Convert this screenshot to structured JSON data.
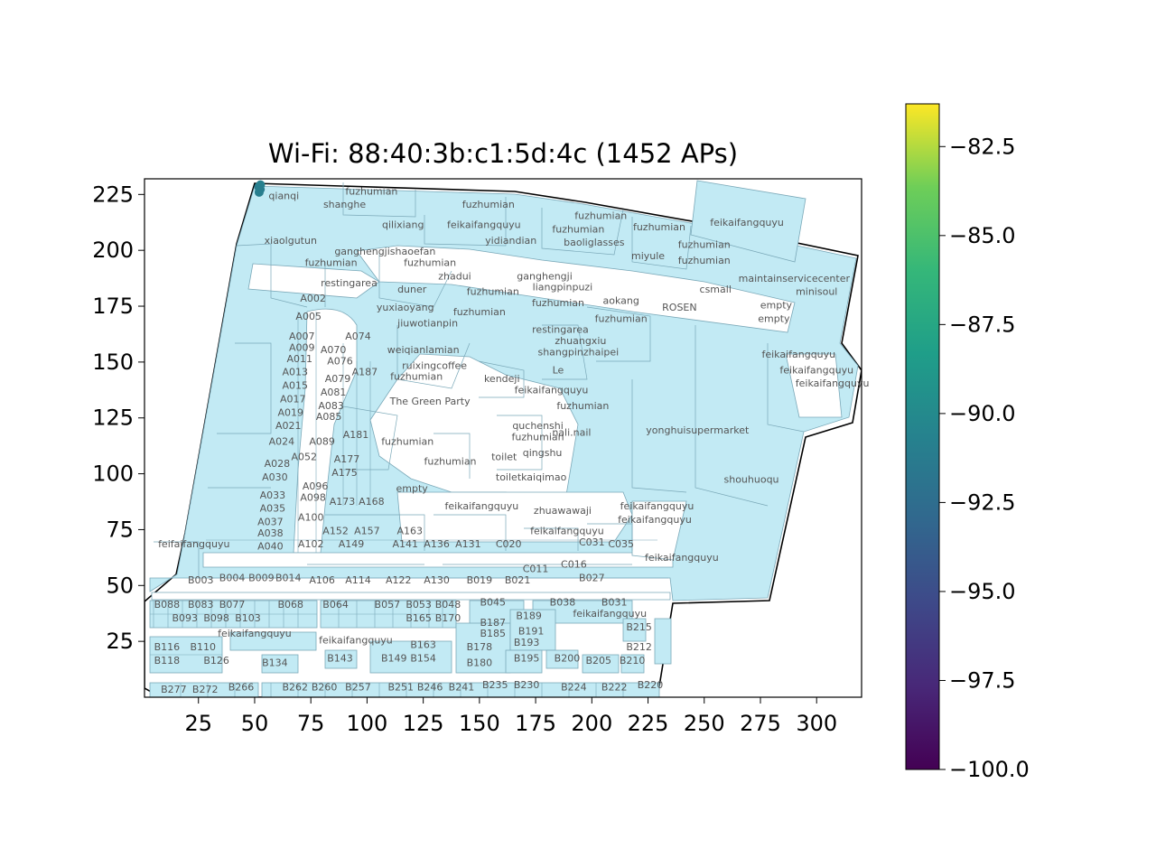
{
  "chart_data": {
    "type": "scatter",
    "title": "Wi-Fi: 88:40:3b:c1:5d:4c (1452 APs)",
    "xlabel": "",
    "ylabel": "",
    "xlim": [
      1,
      320
    ],
    "ylim": [
      0,
      232
    ],
    "xticks": [
      25,
      50,
      75,
      100,
      125,
      150,
      175,
      200,
      225,
      250,
      275,
      300
    ],
    "yticks": [
      25,
      50,
      75,
      100,
      125,
      150,
      175,
      200,
      225
    ],
    "grid": false,
    "series": [
      {
        "points": [
          {
            "x": 52.0,
            "y": 226.0,
            "rssi": -91.0
          },
          {
            "x": 52.5,
            "y": 227.3,
            "rssi": -91.5
          },
          {
            "x": 51.8,
            "y": 228.4,
            "rssi": -91.2
          },
          {
            "x": 52.6,
            "y": 229.3,
            "rssi": -90.8
          },
          {
            "x": 52.2,
            "y": 227.0,
            "rssi": -91.0
          }
        ]
      }
    ],
    "colorbar": {
      "min": -100.0,
      "max": -81.3,
      "ticks": [
        -82.5,
        -85.0,
        -87.5,
        -90.0,
        -92.5,
        -95.0,
        -97.5,
        -100.0
      ],
      "tick_labels": [
        "−82.5",
        "−85.0",
        "−87.5",
        "−90.0",
        "−92.5",
        "−95.0",
        "−97.5",
        "−100.0"
      ],
      "colormap": "viridis"
    },
    "colors": {
      "shop_fill": "#c2eaf4",
      "shop_edge": "#7aa8b8",
      "outline": "#000000"
    },
    "map_labels": [
      {
        "text": "qianqi",
        "x": 63,
        "y": 223
      },
      {
        "text": "fuzhumian",
        "x": 102,
        "y": 225
      },
      {
        "text": "shanghe",
        "x": 90,
        "y": 219
      },
      {
        "text": "fuzhumian",
        "x": 154,
        "y": 219
      },
      {
        "text": "fuzhumian",
        "x": 204,
        "y": 214
      },
      {
        "text": "qilixiang",
        "x": 116,
        "y": 210
      },
      {
        "text": "feikaifangquyu",
        "x": 152,
        "y": 210
      },
      {
        "text": "fuzhumian",
        "x": 194,
        "y": 208
      },
      {
        "text": "fuzhumian",
        "x": 230,
        "y": 209
      },
      {
        "text": "feikaifangquyu",
        "x": 269,
        "y": 211
      },
      {
        "text": "xiaolgutun",
        "x": 66,
        "y": 203
      },
      {
        "text": "yidiandian",
        "x": 164,
        "y": 203
      },
      {
        "text": "baoliglasses",
        "x": 201,
        "y": 202
      },
      {
        "text": "fuzhumian",
        "x": 250,
        "y": 201
      },
      {
        "text": "ganghengjishaoefan",
        "x": 108,
        "y": 198
      },
      {
        "text": "miyule",
        "x": 225,
        "y": 196
      },
      {
        "text": "fuzhumian",
        "x": 250,
        "y": 194
      },
      {
        "text": "fuzhumian",
        "x": 84,
        "y": 193
      },
      {
        "text": "fuzhumian",
        "x": 128,
        "y": 193
      },
      {
        "text": "zhadui",
        "x": 139,
        "y": 187
      },
      {
        "text": "ganghengji",
        "x": 179,
        "y": 187
      },
      {
        "text": "maintainservicecenter",
        "x": 290,
        "y": 186
      },
      {
        "text": "restingarea",
        "x": 92,
        "y": 184
      },
      {
        "text": "liangpinpuzi",
        "x": 187,
        "y": 182
      },
      {
        "text": "duner",
        "x": 120,
        "y": 181
      },
      {
        "text": "fuzhumian",
        "x": 156,
        "y": 180
      },
      {
        "text": "csmall",
        "x": 255,
        "y": 181
      },
      {
        "text": "minisoul",
        "x": 300,
        "y": 180
      },
      {
        "text": "A002",
        "x": 76,
        "y": 177
      },
      {
        "text": "aokang",
        "x": 213,
        "y": 176
      },
      {
        "text": "fuzhumian",
        "x": 185,
        "y": 175
      },
      {
        "text": "empty",
        "x": 282,
        "y": 174
      },
      {
        "text": "yuxiaoyang",
        "x": 117,
        "y": 173
      },
      {
        "text": "fuzhumian",
        "x": 150,
        "y": 171
      },
      {
        "text": "ROSEN",
        "x": 239,
        "y": 173
      },
      {
        "text": "A005",
        "x": 74,
        "y": 169
      },
      {
        "text": "fuzhumian",
        "x": 213,
        "y": 168
      },
      {
        "text": "empty",
        "x": 281,
        "y": 168
      },
      {
        "text": "jiuwotianpin",
        "x": 127,
        "y": 166
      },
      {
        "text": "restingarea",
        "x": 186,
        "y": 163
      },
      {
        "text": "A007",
        "x": 71,
        "y": 160
      },
      {
        "text": "A074",
        "x": 96,
        "y": 160
      },
      {
        "text": "zhuangxiu",
        "x": 195,
        "y": 158
      },
      {
        "text": "A009",
        "x": 71,
        "y": 155
      },
      {
        "text": "A070",
        "x": 85,
        "y": 154
      },
      {
        "text": "weiqianlamian",
        "x": 125,
        "y": 154
      },
      {
        "text": "shangpinzhaipei",
        "x": 194,
        "y": 153
      },
      {
        "text": "feikaifangquyu",
        "x": 292,
        "y": 152
      },
      {
        "text": "A011",
        "x": 70,
        "y": 150
      },
      {
        "text": "A076",
        "x": 88,
        "y": 149
      },
      {
        "text": "ruixingcoffee",
        "x": 130,
        "y": 147
      },
      {
        "text": "A013",
        "x": 68,
        "y": 144
      },
      {
        "text": "A187",
        "x": 99,
        "y": 144
      },
      {
        "text": "Le",
        "x": 185,
        "y": 145
      },
      {
        "text": "feikaifangquyu",
        "x": 300,
        "y": 145
      },
      {
        "text": "fuzhumian",
        "x": 122,
        "y": 142
      },
      {
        "text": "kendeji",
        "x": 160,
        "y": 141
      },
      {
        "text": "A079",
        "x": 87,
        "y": 141
      },
      {
        "text": "feikaifangquyu",
        "x": 307,
        "y": 139
      },
      {
        "text": "A015",
        "x": 68,
        "y": 138
      },
      {
        "text": "A081",
        "x": 85,
        "y": 135
      },
      {
        "text": "feikaifangquyu",
        "x": 182,
        "y": 136
      },
      {
        "text": "A017",
        "x": 67,
        "y": 132
      },
      {
        "text": "The Green Party",
        "x": 128,
        "y": 131
      },
      {
        "text": "A083",
        "x": 84,
        "y": 129
      },
      {
        "text": "A019",
        "x": 66,
        "y": 126
      },
      {
        "text": "fuzhumian",
        "x": 196,
        "y": 129
      },
      {
        "text": "A085",
        "x": 83,
        "y": 124
      },
      {
        "text": "A021",
        "x": 65,
        "y": 120
      },
      {
        "text": "quchenshi",
        "x": 176,
        "y": 120
      },
      {
        "text": "yonghuisupermarket",
        "x": 247,
        "y": 118
      },
      {
        "text": "nali.nail",
        "x": 191,
        "y": 117
      },
      {
        "text": "fuzhumian",
        "x": 176,
        "y": 115
      },
      {
        "text": "A181",
        "x": 95,
        "y": 116
      },
      {
        "text": "A024",
        "x": 62,
        "y": 113
      },
      {
        "text": "A089",
        "x": 80,
        "y": 113
      },
      {
        "text": "fuzhumian",
        "x": 118,
        "y": 113
      },
      {
        "text": "qingshu",
        "x": 178,
        "y": 108
      },
      {
        "text": "A052",
        "x": 72,
        "y": 106
      },
      {
        "text": "A177",
        "x": 91,
        "y": 105
      },
      {
        "text": "toilet",
        "x": 161,
        "y": 106
      },
      {
        "text": "A028",
        "x": 60,
        "y": 103
      },
      {
        "text": "fuzhumian",
        "x": 137,
        "y": 104
      },
      {
        "text": "A175",
        "x": 90,
        "y": 99
      },
      {
        "text": "toiletkaiqimao",
        "x": 173,
        "y": 97
      },
      {
        "text": "shouhuoqu",
        "x": 271,
        "y": 96
      },
      {
        "text": "A030",
        "x": 59,
        "y": 97
      },
      {
        "text": "A096",
        "x": 77,
        "y": 93
      },
      {
        "text": "empty",
        "x": 120,
        "y": 92
      },
      {
        "text": "A033",
        "x": 58,
        "y": 89
      },
      {
        "text": "A098",
        "x": 76,
        "y": 88
      },
      {
        "text": "A173",
        "x": 89,
        "y": 86
      },
      {
        "text": "A168",
        "x": 102,
        "y": 86
      },
      {
        "text": "feikaifangquyu",
        "x": 151,
        "y": 84
      },
      {
        "text": "feikaifangquyu",
        "x": 229,
        "y": 84
      },
      {
        "text": "A035",
        "x": 58,
        "y": 83
      },
      {
        "text": "zhuawawaji",
        "x": 187,
        "y": 82
      },
      {
        "text": "A100",
        "x": 75,
        "y": 79
      },
      {
        "text": "feikaifangquyu",
        "x": 228,
        "y": 78
      },
      {
        "text": "A037",
        "x": 57,
        "y": 77
      },
      {
        "text": "A152",
        "x": 86,
        "y": 73
      },
      {
        "text": "A157",
        "x": 100,
        "y": 73
      },
      {
        "text": "A163",
        "x": 119,
        "y": 73
      },
      {
        "text": "feikaifangquyu",
        "x": 189,
        "y": 73
      },
      {
        "text": "A038",
        "x": 57,
        "y": 72
      },
      {
        "text": "C031",
        "x": 200,
        "y": 68
      },
      {
        "text": "C035",
        "x": 213,
        "y": 67
      },
      {
        "text": "feifaifangquyu",
        "x": 23,
        "y": 67
      },
      {
        "text": "A102",
        "x": 75,
        "y": 67
      },
      {
        "text": "A149",
        "x": 93,
        "y": 67
      },
      {
        "text": "A141",
        "x": 117,
        "y": 67
      },
      {
        "text": "A136",
        "x": 131,
        "y": 67
      },
      {
        "text": "A131",
        "x": 145,
        "y": 67
      },
      {
        "text": "C020",
        "x": 163,
        "y": 67
      },
      {
        "text": "A040",
        "x": 57,
        "y": 66
      },
      {
        "text": "feikaifangquyu",
        "x": 240,
        "y": 61
      },
      {
        "text": "C016",
        "x": 192,
        "y": 58
      },
      {
        "text": "C011",
        "x": 175,
        "y": 56
      },
      {
        "text": "B004",
        "x": 40,
        "y": 52
      },
      {
        "text": "B009",
        "x": 53,
        "y": 52
      },
      {
        "text": "B014",
        "x": 65,
        "y": 52
      },
      {
        "text": "B003",
        "x": 26,
        "y": 51
      },
      {
        "text": "A106",
        "x": 80,
        "y": 51
      },
      {
        "text": "A114",
        "x": 96,
        "y": 51
      },
      {
        "text": "A122",
        "x": 114,
        "y": 51
      },
      {
        "text": "A130",
        "x": 131,
        "y": 51
      },
      {
        "text": "B019",
        "x": 150,
        "y": 51
      },
      {
        "text": "B021",
        "x": 167,
        "y": 51
      },
      {
        "text": "B027",
        "x": 200,
        "y": 52
      },
      {
        "text": "B038",
        "x": 187,
        "y": 41
      },
      {
        "text": "B031",
        "x": 210,
        "y": 41
      },
      {
        "text": "B088",
        "x": 11,
        "y": 40
      },
      {
        "text": "B083",
        "x": 26,
        "y": 40
      },
      {
        "text": "B077",
        "x": 40,
        "y": 40
      },
      {
        "text": "B068",
        "x": 66,
        "y": 40
      },
      {
        "text": "B064",
        "x": 86,
        "y": 40
      },
      {
        "text": "B057",
        "x": 109,
        "y": 40
      },
      {
        "text": "B053",
        "x": 123,
        "y": 40
      },
      {
        "text": "B048",
        "x": 136,
        "y": 40
      },
      {
        "text": "B045",
        "x": 156,
        "y": 41
      },
      {
        "text": "feikaifangquyu",
        "x": 208,
        "y": 36
      },
      {
        "text": "B093",
        "x": 19,
        "y": 34
      },
      {
        "text": "B098",
        "x": 33,
        "y": 34
      },
      {
        "text": "B103",
        "x": 47,
        "y": 34
      },
      {
        "text": "B165",
        "x": 123,
        "y": 34
      },
      {
        "text": "B170",
        "x": 136,
        "y": 34
      },
      {
        "text": "B189",
        "x": 172,
        "y": 35
      },
      {
        "text": "B187",
        "x": 156,
        "y": 32
      },
      {
        "text": "B215",
        "x": 221,
        "y": 30
      },
      {
        "text": "B191",
        "x": 173,
        "y": 28
      },
      {
        "text": "B185",
        "x": 156,
        "y": 27
      },
      {
        "text": "feikaifangquyu",
        "x": 50,
        "y": 27
      },
      {
        "text": "feikaifangquyu",
        "x": 95,
        "y": 24
      },
      {
        "text": "B193",
        "x": 171,
        "y": 23
      },
      {
        "text": "B163",
        "x": 125,
        "y": 22
      },
      {
        "text": "B116",
        "x": 11,
        "y": 21
      },
      {
        "text": "B110",
        "x": 27,
        "y": 21
      },
      {
        "text": "B178",
        "x": 150,
        "y": 21
      },
      {
        "text": "B212",
        "x": 221,
        "y": 21
      },
      {
        "text": "B195",
        "x": 171,
        "y": 16
      },
      {
        "text": "B200",
        "x": 189,
        "y": 16
      },
      {
        "text": "B143",
        "x": 88,
        "y": 16
      },
      {
        "text": "B149",
        "x": 112,
        "y": 16
      },
      {
        "text": "B154",
        "x": 125,
        "y": 16
      },
      {
        "text": "B118",
        "x": 11,
        "y": 15
      },
      {
        "text": "B126",
        "x": 33,
        "y": 15
      },
      {
        "text": "B205",
        "x": 203,
        "y": 15
      },
      {
        "text": "B210",
        "x": 218,
        "y": 15
      },
      {
        "text": "B180",
        "x": 150,
        "y": 14
      },
      {
        "text": "B134",
        "x": 59,
        "y": 14
      },
      {
        "text": "B230",
        "x": 171,
        "y": 4
      },
      {
        "text": "B235",
        "x": 157,
        "y": 4
      },
      {
        "text": "B220",
        "x": 226,
        "y": 4
      },
      {
        "text": "B224",
        "x": 192,
        "y": 3
      },
      {
        "text": "B222",
        "x": 210,
        "y": 3
      },
      {
        "text": "B241",
        "x": 142,
        "y": 3
      },
      {
        "text": "B246",
        "x": 128,
        "y": 3
      },
      {
        "text": "B251",
        "x": 115,
        "y": 3
      },
      {
        "text": "B257",
        "x": 96,
        "y": 3
      },
      {
        "text": "B260",
        "x": 81,
        "y": 3
      },
      {
        "text": "B262",
        "x": 68,
        "y": 3
      },
      {
        "text": "B266",
        "x": 44,
        "y": 3
      },
      {
        "text": "B272",
        "x": 28,
        "y": 2
      },
      {
        "text": "B277",
        "x": 14,
        "y": 2
      }
    ]
  }
}
